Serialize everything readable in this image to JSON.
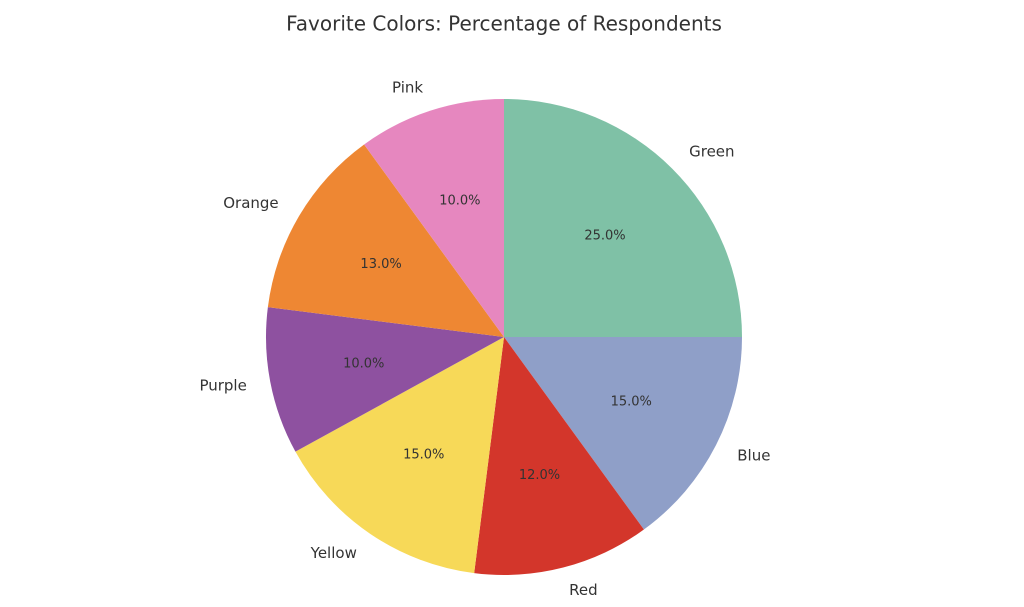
{
  "chart_data": {
    "type": "pie",
    "title": "Favorite Colors: Percentage of Respondents",
    "categories": [
      "Green",
      "Blue",
      "Red",
      "Yellow",
      "Purple",
      "Orange",
      "Pink"
    ],
    "values": [
      25,
      15,
      12,
      15,
      10,
      13,
      10
    ],
    "value_labels": [
      "25.0%",
      "15.0%",
      "12.0%",
      "15.0%",
      "10.0%",
      "13.0%",
      "10.0%"
    ],
    "colors": [
      "#7fc1a6",
      "#8f9fc8",
      "#d3362b",
      "#f7d958",
      "#8e51a0",
      "#ee8733",
      "#e687bf"
    ]
  }
}
